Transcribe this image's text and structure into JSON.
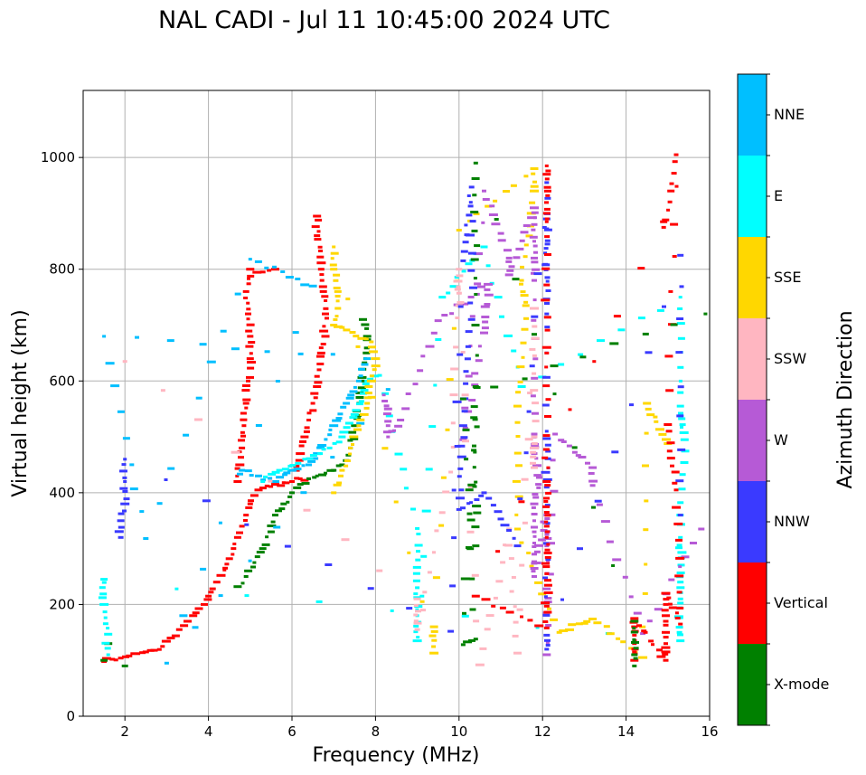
{
  "chart_data": {
    "type": "scatter",
    "title": "NAL CADI - Jul 11 10:45:00 2024 UTC",
    "xlabel": "Frequency (MHz)",
    "ylabel": "Virtual height (km)",
    "xlim": [
      1.0,
      16.0
    ],
    "ylim": [
      0,
      1120
    ],
    "xticks": [
      2,
      4,
      6,
      8,
      10,
      12,
      14,
      16
    ],
    "yticks": [
      0,
      200,
      400,
      600,
      800,
      1000
    ],
    "grid": true,
    "colorbar": {
      "label": "Azimuth Direction",
      "categories": [
        "X-mode",
        "Vertical",
        "NNW",
        "W",
        "SSW",
        "SSE",
        "E",
        "NNE"
      ],
      "colors": [
        "#008000",
        "#ff0000",
        "#3a3aff",
        "#b65ad6",
        "#ffb6c1",
        "#ffd700",
        "#00ffff",
        "#00bfff"
      ]
    },
    "traces": [
      {
        "dir": "Vertical",
        "points": [
          [
            1.5,
            98
          ],
          [
            1.7,
            102
          ],
          [
            1.9,
            104
          ],
          [
            2.1,
            108
          ],
          [
            2.3,
            112
          ],
          [
            2.5,
            115
          ],
          [
            2.7,
            118
          ],
          [
            2.9,
            125
          ],
          [
            3.1,
            140
          ],
          [
            3.3,
            155
          ],
          [
            3.5,
            170
          ],
          [
            3.7,
            185
          ],
          [
            3.9,
            200
          ],
          [
            4.0,
            215
          ],
          [
            4.1,
            228
          ],
          [
            4.2,
            240
          ],
          [
            4.3,
            252
          ],
          [
            4.4,
            265
          ],
          [
            4.5,
            282
          ],
          [
            4.6,
            300
          ],
          [
            4.7,
            320
          ],
          [
            4.8,
            340
          ],
          [
            4.9,
            360
          ],
          [
            5.0,
            380
          ],
          [
            5.1,
            395
          ],
          [
            5.2,
            405
          ],
          [
            5.4,
            412
          ],
          [
            5.6,
            415
          ],
          [
            5.8,
            418
          ],
          [
            6.0,
            420
          ],
          [
            6.2,
            425
          ],
          [
            6.4,
            425
          ]
        ]
      },
      {
        "dir": "Vertical",
        "points": [
          [
            4.7,
            420
          ],
          [
            4.75,
            450
          ],
          [
            4.8,
            480
          ],
          [
            4.85,
            520
          ],
          [
            4.9,
            560
          ],
          [
            4.95,
            600
          ],
          [
            5.0,
            640
          ],
          [
            5.0,
            680
          ],
          [
            4.95,
            720
          ],
          [
            4.9,
            760
          ],
          [
            5.0,
            800
          ],
          [
            5.3,
            795
          ],
          [
            5.6,
            800
          ]
        ]
      },
      {
        "dir": "Vertical",
        "points": [
          [
            6.1,
            440
          ],
          [
            6.2,
            470
          ],
          [
            6.3,
            500
          ],
          [
            6.4,
            530
          ],
          [
            6.5,
            560
          ],
          [
            6.6,
            590
          ],
          [
            6.65,
            620
          ],
          [
            6.7,
            650
          ],
          [
            6.8,
            680
          ],
          [
            6.8,
            720
          ],
          [
            6.75,
            760
          ],
          [
            6.7,
            800
          ],
          [
            6.6,
            860
          ],
          [
            6.6,
            895
          ]
        ]
      },
      {
        "dir": "X-mode",
        "points": [
          [
            4.7,
            232
          ],
          [
            4.9,
            250
          ],
          [
            5.1,
            275
          ],
          [
            5.3,
            300
          ],
          [
            5.5,
            330
          ],
          [
            5.6,
            360
          ],
          [
            5.8,
            380
          ],
          [
            6.0,
            400
          ],
          [
            6.2,
            415
          ],
          [
            6.4,
            425
          ],
          [
            6.6,
            430
          ],
          [
            6.8,
            435
          ],
          [
            7.0,
            440
          ],
          [
            7.2,
            450
          ],
          [
            7.4,
            480
          ],
          [
            7.5,
            520
          ],
          [
            7.6,
            560
          ],
          [
            7.7,
            600
          ],
          [
            7.75,
            640
          ],
          [
            7.8,
            680
          ],
          [
            7.7,
            710
          ]
        ]
      },
      {
        "dir": "X-mode",
        "points": [
          [
            1.5,
            100
          ],
          [
            1.6,
            130
          ],
          [
            2.0,
            90
          ]
        ]
      },
      {
        "dir": "NNE",
        "points": [
          [
            4.8,
            440
          ],
          [
            5.2,
            430
          ],
          [
            5.6,
            420
          ],
          [
            6.0,
            440
          ],
          [
            6.4,
            450
          ],
          [
            6.6,
            470
          ],
          [
            7.0,
            520
          ],
          [
            7.3,
            560
          ],
          [
            7.6,
            600
          ],
          [
            7.8,
            640
          ],
          [
            1.5,
            680
          ],
          [
            2.5,
            318
          ],
          [
            5.0,
            818
          ],
          [
            6.5,
            770
          ],
          [
            3.0,
            95
          ],
          [
            8.3,
            585
          ]
        ]
      },
      {
        "dir": "E",
        "points": [
          [
            5.3,
            420
          ],
          [
            5.7,
            440
          ],
          [
            6.3,
            460
          ],
          [
            6.9,
            480
          ],
          [
            7.2,
            500
          ],
          [
            7.5,
            540
          ],
          [
            7.8,
            600
          ],
          [
            8.1,
            610
          ],
          [
            9.0,
            336
          ],
          [
            9.0,
            230
          ],
          [
            9.0,
            180
          ],
          [
            9.0,
            135
          ],
          [
            9.6,
            750
          ],
          [
            10.6,
            840
          ],
          [
            11.5,
            590
          ],
          [
            15.3,
            750
          ],
          [
            15.3,
            555
          ],
          [
            15.4,
            495
          ],
          [
            15.3,
            320
          ],
          [
            15.3,
            240
          ],
          [
            15.3,
            210
          ],
          [
            15.3,
            135
          ],
          [
            1.5,
            245
          ],
          [
            1.5,
            200
          ],
          [
            1.6,
            110
          ]
        ]
      },
      {
        "dir": "SSE",
        "points": [
          [
            7.0,
            400
          ],
          [
            7.2,
            440
          ],
          [
            7.4,
            480
          ],
          [
            7.6,
            520
          ],
          [
            7.8,
            560
          ],
          [
            7.9,
            600
          ],
          [
            8.0,
            640
          ],
          [
            7.9,
            670
          ],
          [
            7.0,
            700
          ],
          [
            7.1,
            730
          ],
          [
            7.1,
            760
          ],
          [
            7.0,
            800
          ],
          [
            7.0,
            840
          ],
          [
            9.4,
            113
          ],
          [
            9.4,
            160
          ],
          [
            10.0,
            870
          ],
          [
            11.8,
            980
          ],
          [
            11.8,
            940
          ],
          [
            11.5,
            780
          ],
          [
            11.6,
            735
          ],
          [
            11.4,
            555
          ],
          [
            11.4,
            335
          ],
          [
            12.4,
            150
          ],
          [
            13.2,
            174
          ],
          [
            14.4,
            105
          ],
          [
            14.5,
            560
          ],
          [
            15.0,
            488
          ]
        ]
      },
      {
        "dir": "W",
        "points": [
          [
            8.2,
            575
          ],
          [
            8.3,
            550
          ],
          [
            8.3,
            520
          ],
          [
            8.3,
            500
          ],
          [
            8.6,
            530
          ],
          [
            9.5,
            708
          ],
          [
            10.7,
            773
          ],
          [
            10.6,
            686
          ],
          [
            10.1,
            495
          ],
          [
            10.6,
            940
          ],
          [
            11.2,
            820
          ],
          [
            11.2,
            790
          ],
          [
            11.8,
            910
          ],
          [
            11.8,
            880
          ],
          [
            11.8,
            850
          ],
          [
            11.8,
            820
          ],
          [
            11.8,
            780
          ],
          [
            11.8,
            505
          ],
          [
            11.8,
            470
          ],
          [
            11.9,
            415
          ],
          [
            11.8,
            380
          ],
          [
            11.8,
            350
          ],
          [
            11.8,
            330
          ],
          [
            11.8,
            310
          ],
          [
            11.8,
            290
          ],
          [
            11.8,
            250
          ],
          [
            12.1,
            360
          ],
          [
            12.1,
            305
          ],
          [
            12.1,
            110
          ],
          [
            12.3,
            505
          ],
          [
            13.2,
            445
          ],
          [
            13.2,
            413
          ],
          [
            14.4,
            148
          ],
          [
            15.8,
            335
          ]
        ]
      },
      {
        "dir": "SSW",
        "points": [
          [
            2.0,
            635
          ],
          [
            9.0,
            210
          ],
          [
            9.0,
            155
          ],
          [
            9.8,
            437
          ],
          [
            10.0,
            800
          ],
          [
            10.0,
            735
          ],
          [
            10.5,
            92
          ],
          [
            11.2,
            335
          ],
          [
            11.4,
            113
          ],
          [
            11.8,
            730
          ],
          [
            11.8,
            500
          ],
          [
            11.8,
            480
          ],
          [
            11.8,
            445
          ]
        ]
      },
      {
        "dir": "NNW",
        "points": [
          [
            1.9,
            320
          ],
          [
            1.9,
            350
          ],
          [
            2.0,
            380
          ],
          [
            2.0,
            420
          ],
          [
            2.0,
            460
          ],
          [
            9.8,
            152
          ],
          [
            10.1,
            815
          ],
          [
            10.3,
            947
          ],
          [
            10.3,
            710
          ],
          [
            10.1,
            520
          ],
          [
            10.0,
            370
          ],
          [
            10.6,
            400
          ],
          [
            11.4,
            305
          ],
          [
            12.1,
            955
          ],
          [
            12.1,
            720
          ],
          [
            12.1,
            890
          ],
          [
            12.1,
            510
          ],
          [
            12.1,
            410
          ],
          [
            12.1,
            145
          ],
          [
            12.1,
            120
          ],
          [
            15.3,
            825
          ],
          [
            15.3,
            360
          ]
        ]
      },
      {
        "dir": "Vertical",
        "points": [
          [
            12.1,
            985
          ],
          [
            12.1,
            970
          ],
          [
            12.1,
            900
          ],
          [
            12.1,
            885
          ],
          [
            12.1,
            660
          ],
          [
            12.1,
            650
          ],
          [
            12.1,
            420
          ],
          [
            12.1,
            365
          ],
          [
            12.1,
            340
          ],
          [
            12.1,
            320
          ],
          [
            12.1,
            255
          ],
          [
            12.1,
            158
          ],
          [
            10.4,
            215
          ],
          [
            14.9,
            885
          ],
          [
            14.9,
            875
          ],
          [
            15.2,
            1005
          ],
          [
            15.0,
            522
          ],
          [
            15.2,
            405
          ],
          [
            15.3,
            165
          ],
          [
            14.95,
            220
          ],
          [
            14.95,
            200
          ],
          [
            14.95,
            180
          ],
          [
            14.95,
            170
          ],
          [
            14.95,
            150
          ],
          [
            14.95,
            130
          ],
          [
            14.95,
            115
          ],
          [
            14.95,
            100
          ],
          [
            14.2,
            175
          ],
          [
            14.2,
            160
          ],
          [
            14.2,
            145
          ],
          [
            14.2,
            130
          ],
          [
            14.2,
            115
          ],
          [
            14.2,
            100
          ]
        ]
      },
      {
        "dir": "X-mode",
        "points": [
          [
            14.2,
            90
          ],
          [
            14.2,
            110
          ],
          [
            14.2,
            170
          ],
          [
            10.4,
            990
          ],
          [
            10.4,
            755
          ],
          [
            10.4,
            305
          ],
          [
            10.4,
            590
          ],
          [
            10.1,
            128
          ],
          [
            10.4,
            138
          ],
          [
            10.1,
            568
          ],
          [
            15.9,
            720
          ]
        ]
      }
    ]
  }
}
